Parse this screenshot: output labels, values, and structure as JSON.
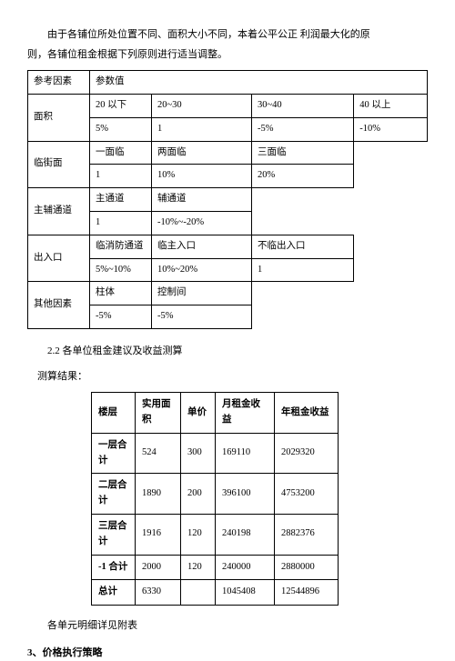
{
  "intro": {
    "line1": "由于各铺位所处位置不同、面积大小不同，本着公平公正 利润最大化的原",
    "line2": "则，各铺位租金根据下列原则进行适当调整。"
  },
  "table1": {
    "r1": {
      "c1": "参考因素",
      "c2": "参数值"
    },
    "r2": {
      "c1": "面积",
      "c2": "20 以下",
      "c3": "20~30",
      "c4": "30~40",
      "c5": "40 以上"
    },
    "r3": {
      "c2": "5%",
      "c3": "1",
      "c4": "-5%",
      "c5": "-10%"
    },
    "r4": {
      "c1": "临街面",
      "c2": "一面临",
      "c3": "两面临",
      "c4": "三面临"
    },
    "r5": {
      "c2": "1",
      "c3": "10%",
      "c4": "20%"
    },
    "r6": {
      "c1": "主辅通道",
      "c2": "主通道",
      "c3": "辅通道"
    },
    "r7": {
      "c2": "1",
      "c3": "-10%~-20%"
    },
    "r8": {
      "c1": "出入口",
      "c2": "临消防通道",
      "c3": "临主入口",
      "c4": "不临出入口"
    },
    "r9": {
      "c2": "5%~10%",
      "c3": "10%~20%",
      "c4": "1"
    },
    "r10": {
      "c1": "其他因素",
      "c2": "柱体",
      "c3": "控制间"
    },
    "r11": {
      "c2": "-5%",
      "c3": "-5%"
    }
  },
  "section22": "2.2 各单位租金建议及收益测算",
  "resultLabel": "测算结果：",
  "table2": {
    "hdr": {
      "c1": "楼层",
      "c2": "实用面积",
      "c3": "单价",
      "c4": "月租金收益",
      "c5": "年租金收益"
    },
    "r1": {
      "c1": "一层合计",
      "c2": "524",
      "c3": "300",
      "c4": "169110",
      "c5": "2029320"
    },
    "r2": {
      "c1": "二层合计",
      "c2": "1890",
      "c3": "200",
      "c4": "396100",
      "c5": "4753200"
    },
    "r3": {
      "c1": "三层合计",
      "c2": "1916",
      "c3": "120",
      "c4": "240198",
      "c5": "2882376"
    },
    "r4": {
      "c1": "-1 合计",
      "c2": "2000",
      "c3": "120",
      "c4": "240000",
      "c5": "2880000"
    },
    "r5": {
      "c1": "总计",
      "c2": "6330",
      "c3": "",
      "c4": "1045408",
      "c5": "12544896"
    }
  },
  "footerNote": "各单元明细详见附表",
  "strategyHeader": "3、价格执行策略"
}
